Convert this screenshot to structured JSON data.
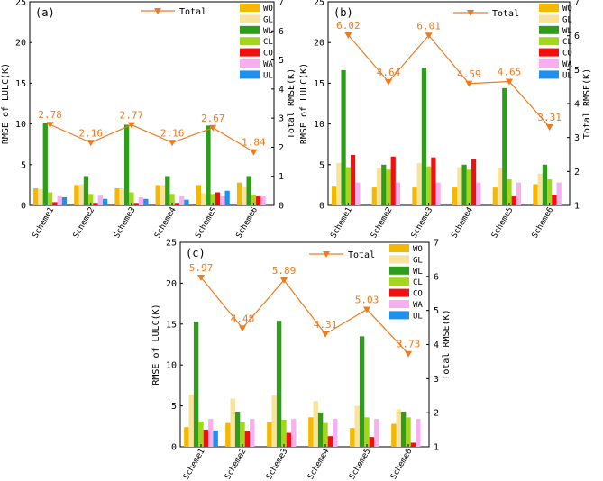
{
  "figure": {
    "categories": [
      "Scheme1",
      "Scheme2",
      "Scheme3",
      "Scheme4",
      "Scheme5",
      "Scheme6"
    ],
    "legend_total_label": "Total",
    "legend_landcover": [
      {
        "code": "WO",
        "color": "#F5B800"
      },
      {
        "code": "GL",
        "color": "#F7E39A"
      },
      {
        "code": "WL",
        "color": "#2E9E1A"
      },
      {
        "code": "CL",
        "color": "#A4D61C"
      },
      {
        "code": "CO",
        "color": "#F20F0F"
      },
      {
        "code": "WA",
        "color": "#F9AEF0"
      },
      {
        "code": "UL",
        "color": "#1E90F0"
      }
    ],
    "total_color": "#F07A1E"
  },
  "chart_data": [
    {
      "panel": "(a)",
      "type": "bar",
      "categories": [
        "Scheme1",
        "Scheme2",
        "Scheme3",
        "Scheme4",
        "Scheme5",
        "Scheme6"
      ],
      "ylabel": "RMSE of LULC(K)",
      "y2label": "Total RMSE(K)",
      "ylim": [
        0,
        25
      ],
      "y2lim": [
        0,
        7
      ],
      "yticks": [
        0,
        5,
        10,
        15,
        20,
        25
      ],
      "y2ticks": [
        0,
        1,
        2,
        3,
        4,
        5,
        6,
        7
      ],
      "series": [
        {
          "name": "WO",
          "values": [
            2.1,
            2.5,
            2.1,
            2.5,
            2.5,
            2.8
          ]
        },
        {
          "name": "GL",
          "values": [
            2.0,
            2.6,
            2.1,
            2.5,
            1.5,
            2.2
          ]
        },
        {
          "name": "WL",
          "values": [
            10.1,
            3.6,
            9.9,
            3.6,
            9.8,
            3.6
          ]
        },
        {
          "name": "CL",
          "values": [
            1.6,
            1.4,
            1.6,
            1.4,
            1.4,
            1.3
          ]
        },
        {
          "name": "CO",
          "values": [
            0.4,
            0.3,
            0.3,
            0.3,
            1.6,
            1.1
          ]
        },
        {
          "name": "WA",
          "values": [
            1.1,
            1.2,
            1.0,
            1.1,
            1.1,
            1.1
          ]
        },
        {
          "name": "UL",
          "values": [
            1.0,
            0.8,
            0.8,
            0.7,
            1.8,
            null
          ]
        }
      ],
      "total": {
        "name": "Total",
        "values": [
          2.78,
          2.16,
          2.77,
          2.16,
          2.67,
          1.84
        ],
        "labels": [
          "2.78",
          "2.16",
          "2.77",
          "2.16",
          "2.67",
          "1.84"
        ]
      }
    },
    {
      "panel": "(b)",
      "type": "bar",
      "categories": [
        "Scheme1",
        "Scheme2",
        "Scheme3",
        "Scheme4",
        "Scheme5",
        "Scheme6"
      ],
      "ylabel": "RMSE of LULC(K)",
      "y2label": "Total RMSE(K)",
      "ylim": [
        0,
        25
      ],
      "y2lim": [
        1,
        7
      ],
      "yticks": [
        0,
        5,
        10,
        15,
        20,
        25
      ],
      "y2ticks": [
        1,
        2,
        3,
        4,
        5,
        6,
        7
      ],
      "series": [
        {
          "name": "WO",
          "values": [
            2.3,
            2.2,
            2.2,
            2.2,
            2.2,
            2.6
          ]
        },
        {
          "name": "GL",
          "values": [
            5.2,
            4.6,
            5.2,
            4.7,
            4.6,
            3.9
          ]
        },
        {
          "name": "WL",
          "values": [
            16.6,
            5.0,
            16.9,
            5.0,
            14.4,
            5.0
          ]
        },
        {
          "name": "CL",
          "values": [
            4.7,
            4.4,
            4.8,
            4.4,
            3.2,
            3.2
          ]
        },
        {
          "name": "CO",
          "values": [
            6.2,
            6.0,
            5.9,
            5.7,
            1.1,
            1.3
          ]
        },
        {
          "name": "WA",
          "values": [
            2.8,
            2.8,
            2.8,
            2.8,
            2.8,
            2.8
          ]
        },
        {
          "name": "UL",
          "values": [
            null,
            null,
            null,
            null,
            null,
            null
          ]
        }
      ],
      "total": {
        "name": "Total",
        "values": [
          6.02,
          4.64,
          6.01,
          4.59,
          4.65,
          3.31
        ],
        "labels": [
          "6.02",
          "4.64",
          "6.01",
          "4.59",
          "4.65",
          "3.31"
        ]
      }
    },
    {
      "panel": "(c)",
      "type": "bar",
      "categories": [
        "Scheme1",
        "Scheme2",
        "Scheme3",
        "Scheme4",
        "Scheme5",
        "Scheme6"
      ],
      "ylabel": "RMSE of LULC(K)",
      "y2label": "Total RMSE(K)",
      "ylim": [
        0,
        25
      ],
      "y2lim": [
        1,
        7
      ],
      "yticks": [
        0,
        5,
        10,
        15,
        20,
        25
      ],
      "y2ticks": [
        1,
        2,
        3,
        4,
        5,
        6,
        7
      ],
      "series": [
        {
          "name": "WO",
          "values": [
            2.4,
            2.9,
            3.0,
            3.6,
            2.3,
            2.8
          ]
        },
        {
          "name": "GL",
          "values": [
            6.4,
            5.9,
            6.3,
            5.6,
            5.0,
            4.6
          ]
        },
        {
          "name": "WL",
          "values": [
            15.3,
            4.3,
            15.4,
            4.2,
            13.5,
            4.3
          ]
        },
        {
          "name": "CL",
          "values": [
            3.1,
            3.0,
            3.3,
            2.9,
            3.6,
            3.6
          ]
        },
        {
          "name": "CO",
          "values": [
            2.1,
            1.9,
            1.7,
            1.3,
            1.2,
            0.5
          ]
        },
        {
          "name": "WA",
          "values": [
            3.4,
            3.4,
            3.4,
            3.4,
            3.4,
            3.4
          ]
        },
        {
          "name": "UL",
          "values": [
            2.0,
            null,
            null,
            null,
            null,
            null
          ]
        }
      ],
      "total": {
        "name": "Total",
        "values": [
          5.97,
          4.48,
          5.89,
          4.31,
          5.03,
          3.73
        ],
        "labels": [
          "5.97",
          "4.48",
          "5.89",
          "4.31",
          "5.03",
          "3.73"
        ]
      }
    }
  ]
}
